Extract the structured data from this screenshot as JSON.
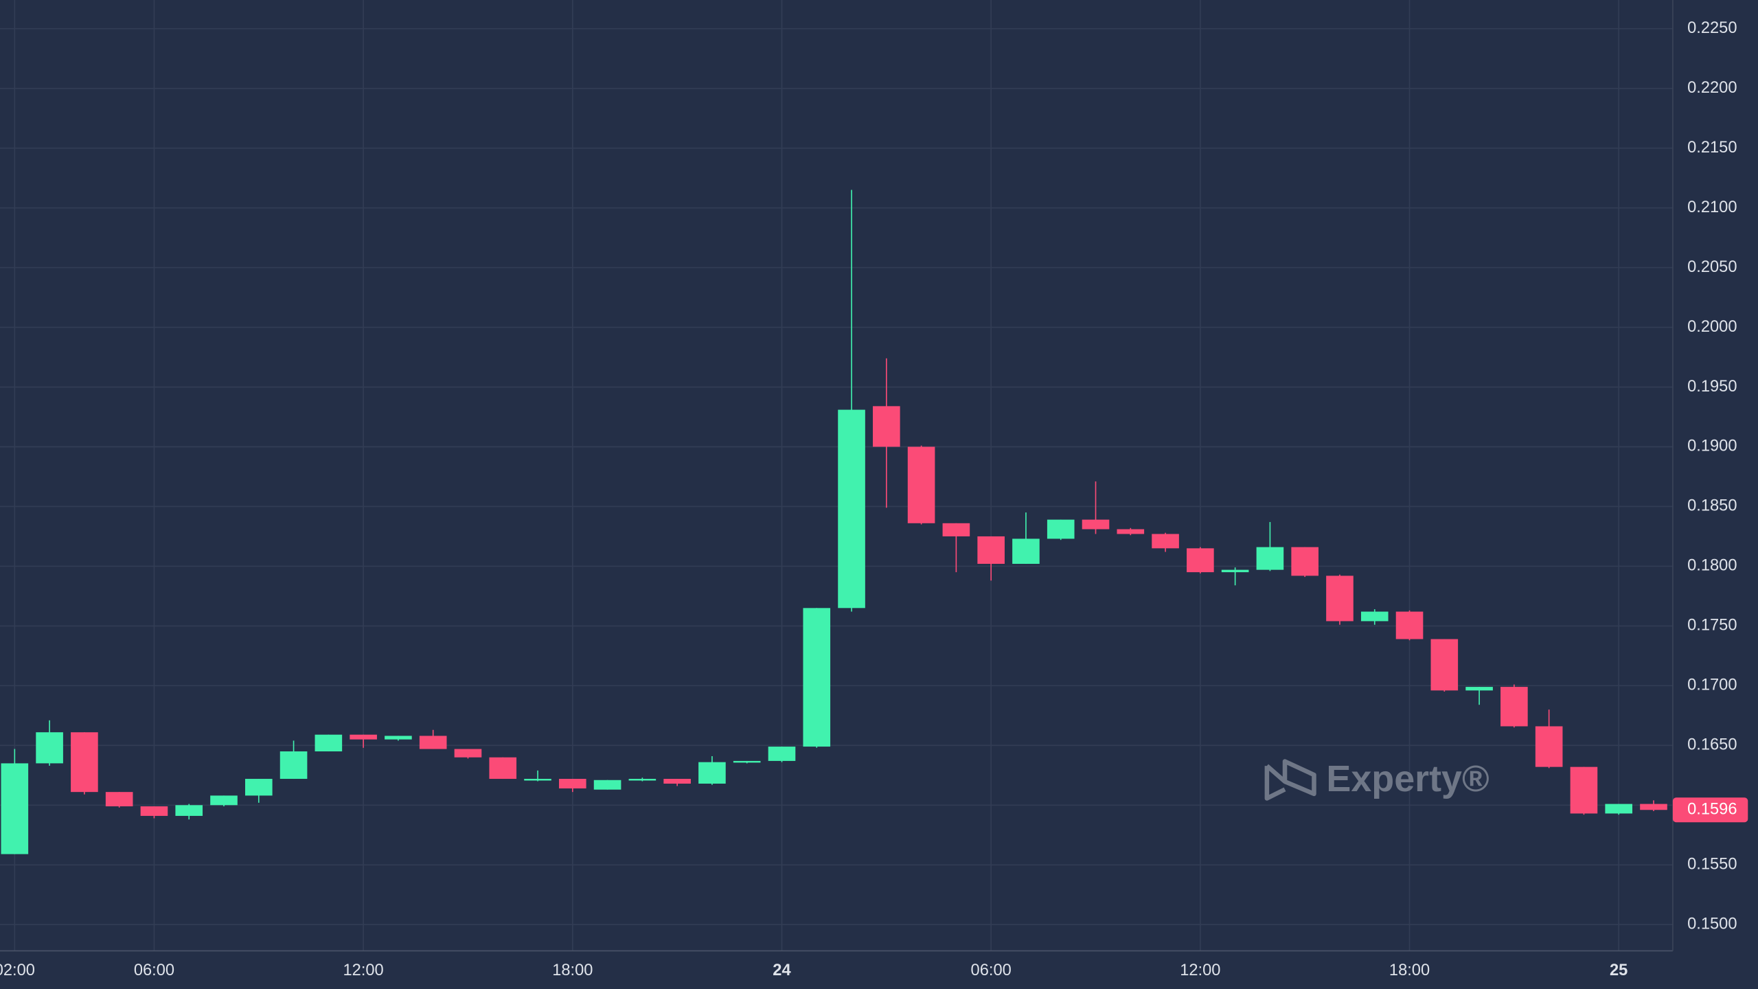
{
  "chart_data": {
    "type": "candlestick",
    "watermark": "Experty®",
    "x": [
      0,
      1,
      2,
      3,
      4,
      5,
      6,
      7,
      8,
      9,
      10,
      11,
      12,
      13,
      14,
      15,
      16,
      17,
      18,
      19,
      20,
      21,
      22,
      23,
      24,
      25,
      26,
      27,
      28,
      29,
      30,
      31,
      32,
      33,
      34,
      35,
      36,
      37,
      38,
      39,
      40,
      41,
      42,
      43,
      44,
      45,
      46,
      47
    ],
    "open": [
      0.1559,
      0.1635,
      0.1661,
      0.1611,
      0.1599,
      0.1591,
      0.16,
      0.1608,
      0.1622,
      0.1645,
      0.1659,
      0.1655,
      0.1658,
      0.1647,
      0.164,
      0.1621,
      0.1622,
      0.1613,
      0.1621,
      0.1622,
      0.1618,
      0.1636,
      0.1637,
      0.1649,
      0.1765,
      0.1934,
      0.19,
      0.1836,
      0.1825,
      0.1802,
      0.1823,
      0.1839,
      0.1831,
      0.1827,
      0.1815,
      0.1795,
      0.1797,
      0.1816,
      0.1792,
      0.1754,
      0.1762,
      0.1739,
      0.1696,
      0.1699,
      0.1666,
      0.1632,
      0.1593,
      0.1601
    ],
    "high": [
      0.1647,
      0.1671,
      0.1661,
      0.1611,
      0.1599,
      0.1601,
      0.1608,
      0.1622,
      0.1654,
      0.1659,
      0.1659,
      0.1658,
      0.1663,
      0.1647,
      0.164,
      0.1629,
      0.1622,
      0.1621,
      0.1623,
      0.1622,
      0.1641,
      0.1637,
      0.1649,
      0.1765,
      0.2115,
      0.1974,
      0.1901,
      0.1836,
      0.1825,
      0.1845,
      0.1839,
      0.1871,
      0.1832,
      0.1828,
      0.1816,
      0.1799,
      0.1837,
      0.1816,
      0.1793,
      0.1764,
      0.1763,
      0.1739,
      0.1699,
      0.1701,
      0.168,
      0.1632,
      0.1601,
      0.1604
    ],
    "low": [
      0.1559,
      0.1633,
      0.1609,
      0.1598,
      0.1589,
      0.1588,
      0.1599,
      0.1602,
      0.1622,
      0.1645,
      0.1648,
      0.1654,
      0.1647,
      0.1639,
      0.1622,
      0.162,
      0.1611,
      0.1613,
      0.162,
      0.1616,
      0.1617,
      0.1635,
      0.1636,
      0.1648,
      0.1762,
      0.1849,
      0.1835,
      0.1795,
      0.1788,
      0.1802,
      0.1822,
      0.1827,
      0.1826,
      0.1812,
      0.1794,
      0.1784,
      0.1796,
      0.1791,
      0.1751,
      0.1751,
      0.1738,
      0.1695,
      0.1684,
      0.1665,
      0.1631,
      0.1592,
      0.1592,
      0.1595
    ],
    "close": [
      0.1635,
      0.1661,
      0.1611,
      0.1599,
      0.1591,
      0.16,
      0.1608,
      0.1622,
      0.1645,
      0.1659,
      0.1655,
      0.1658,
      0.1647,
      0.164,
      0.1622,
      0.1622,
      0.1614,
      0.1621,
      0.1622,
      0.1618,
      0.1636,
      0.1637,
      0.1649,
      0.1765,
      0.1931,
      0.19,
      0.1836,
      0.1825,
      0.1802,
      0.1823,
      0.1839,
      0.1831,
      0.1827,
      0.1815,
      0.1795,
      0.1797,
      0.1816,
      0.1792,
      0.1754,
      0.1762,
      0.1739,
      0.1696,
      0.1699,
      0.1666,
      0.1632,
      0.1593,
      0.1601,
      0.1596
    ],
    "up_color": "#41f2ae",
    "down_color": "#fb4b77",
    "xlim": [
      -0.42,
      47.55
    ],
    "ylim": [
      0.1478,
      0.2274
    ],
    "xticks": [
      {
        "value": 0,
        "label": "02:00"
      },
      {
        "value": 4,
        "label": "06:00"
      },
      {
        "value": 10,
        "label": "12:00"
      },
      {
        "value": 16,
        "label": "18:00"
      },
      {
        "value": 22,
        "label": "24"
      },
      {
        "value": 28,
        "label": "06:00"
      },
      {
        "value": 34,
        "label": "12:00"
      },
      {
        "value": 40,
        "label": "18:00"
      },
      {
        "value": 46,
        "label": "25"
      }
    ],
    "yticks": [
      {
        "value": 0.15,
        "label": "0.1500"
      },
      {
        "value": 0.155,
        "label": "0.1550"
      },
      {
        "value": 0.16,
        "label": "0.1600"
      },
      {
        "value": 0.165,
        "label": "0.1650"
      },
      {
        "value": 0.17,
        "label": "0.1700"
      },
      {
        "value": 0.175,
        "label": "0.1750"
      },
      {
        "value": 0.18,
        "label": "0.1800"
      },
      {
        "value": 0.185,
        "label": "0.1850"
      },
      {
        "value": 0.19,
        "label": "0.1900"
      },
      {
        "value": 0.195,
        "label": "0.1950"
      },
      {
        "value": 0.2,
        "label": "0.2000"
      },
      {
        "value": 0.205,
        "label": "0.2050"
      },
      {
        "value": 0.21,
        "label": "0.2100"
      },
      {
        "value": 0.215,
        "label": "0.2150"
      },
      {
        "value": 0.22,
        "label": "0.2200"
      },
      {
        "value": 0.225,
        "label": "0.2250"
      }
    ],
    "last_price": 0.1596,
    "grid": true
  }
}
